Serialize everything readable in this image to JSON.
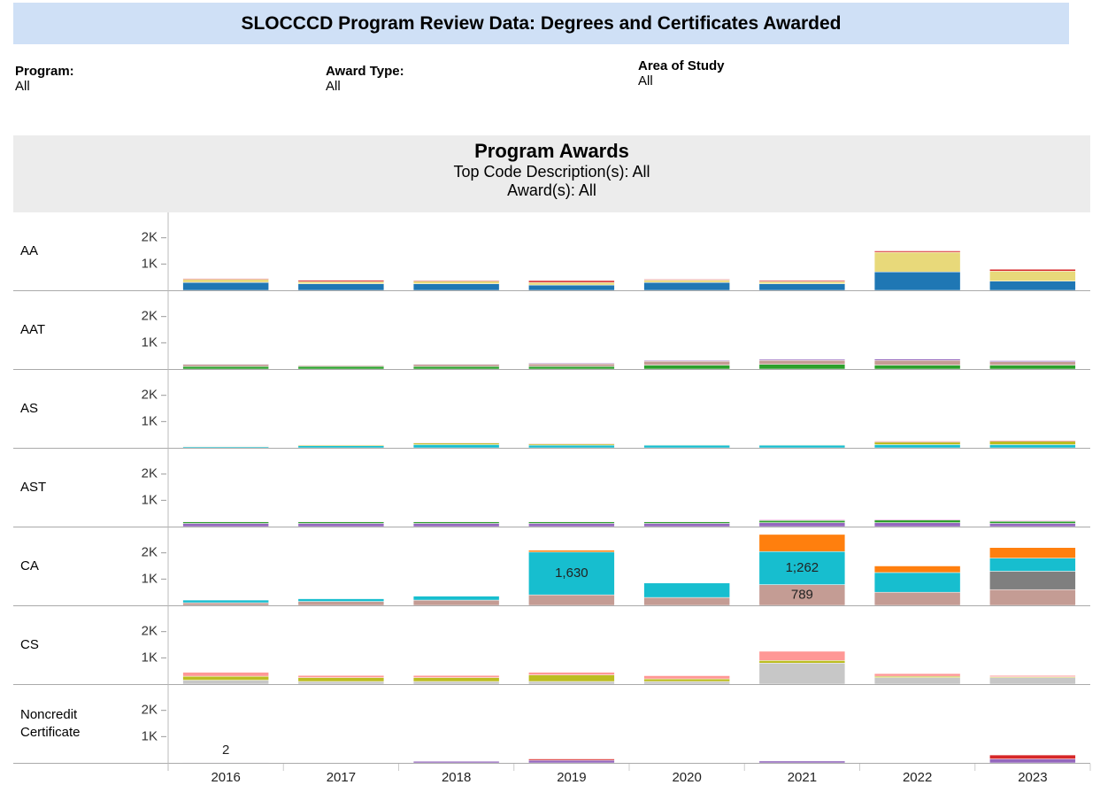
{
  "title": "SLOCCCD Program Review Data: Degrees and Certificates Awarded",
  "filters": [
    {
      "label": "Program:",
      "value": "All"
    },
    {
      "label": "Award Type:",
      "value": "All"
    },
    {
      "label": "Area of Study",
      "value": "All"
    }
  ],
  "chart_data": {
    "type": "stacked-bar-panels",
    "title": "Program Awards",
    "subtitle": [
      "Top Code Description(s): All",
      "Award(s): All"
    ],
    "categories": [
      "2016",
      "2017",
      "2018",
      "2019",
      "2020",
      "2021",
      "2022",
      "2023"
    ],
    "ylim": [
      0,
      2900
    ],
    "yticks": [
      {
        "value": 1000,
        "label": "1K"
      },
      {
        "value": 2000,
        "label": "2K"
      }
    ],
    "panels": [
      {
        "name": "AA",
        "series": [
          {
            "color": "#1f77b4",
            "values": [
              300,
              250,
              250,
              200,
              300,
              250,
              700,
              350
            ]
          },
          {
            "color": "#e8d97a",
            "values": [
              120,
              80,
              100,
              100,
              90,
              80,
              750,
              380
            ]
          },
          {
            "color": "#d62728",
            "values": [
              30,
              50,
              30,
              70,
              30,
              40,
              50,
              70
            ]
          }
        ]
      },
      {
        "name": "AAT",
        "series": [
          {
            "color": "#2ca02c",
            "values": [
              100,
              100,
              100,
              100,
              150,
              180,
              150,
              150
            ]
          },
          {
            "color": "#c49c94",
            "values": [
              80,
              40,
              80,
              100,
              150,
              150,
              180,
              130
            ]
          },
          {
            "color": "#9467bd",
            "values": [
              20,
              10,
              20,
              30,
              30,
              40,
              50,
              40
            ]
          }
        ]
      },
      {
        "name": "AS",
        "series": [
          {
            "color": "#17becf",
            "values": [
              40,
              80,
              120,
              100,
              100,
              100,
              120,
              120
            ]
          },
          {
            "color": "#bcbd22",
            "values": [
              20,
              30,
              60,
              50,
              20,
              20,
              100,
              130
            ]
          },
          {
            "color": "#d62728",
            "values": [
              10,
              10,
              20,
              20,
              10,
              10,
              30,
              30
            ]
          }
        ]
      },
      {
        "name": "AST",
        "series": [
          {
            "color": "#9467bd",
            "values": [
              120,
              120,
              120,
              120,
              120,
              150,
              150,
              120
            ]
          },
          {
            "color": "#2ca02c",
            "values": [
              60,
              60,
              60,
              60,
              60,
              80,
              100,
              80
            ]
          },
          {
            "color": "#e377c2",
            "values": [
              20,
              20,
              20,
              20,
              20,
              30,
              30,
              30
            ]
          }
        ]
      },
      {
        "name": "CA",
        "series": [
          {
            "color": "#c49c94",
            "values": [
              100,
              150,
              200,
              400,
              300,
              789,
              500,
              600
            ],
            "value_labels": [
              null,
              null,
              null,
              null,
              null,
              "789",
              null,
              null
            ]
          },
          {
            "color": "#7f7f7f",
            "values": [
              0,
              0,
              0,
              0,
              0,
              0,
              0,
              700
            ]
          },
          {
            "color": "#17becf",
            "values": [
              100,
              100,
              150,
              1630,
              550,
              1262,
              750,
              500
            ],
            "value_labels": [
              null,
              null,
              null,
              "1,630",
              null,
              "1;262",
              null,
              null
            ]
          },
          {
            "color": "#ff7f0e",
            "values": [
              0,
              0,
              0,
              70,
              0,
              650,
              250,
              400
            ]
          }
        ]
      },
      {
        "name": "CS",
        "series": [
          {
            "color": "#c7c7c7",
            "values": [
              150,
              100,
              100,
              100,
              100,
              800,
              250,
              250
            ]
          },
          {
            "color": "#bcbd22",
            "values": [
              150,
              150,
              150,
              250,
              100,
              100,
              50,
              30
            ]
          },
          {
            "color": "#ff9896",
            "values": [
              150,
              80,
              80,
              100,
              120,
              350,
              100,
              50
            ]
          }
        ]
      },
      {
        "name": "Noncredit Certificate",
        "series": [
          {
            "color": "#9467bd",
            "values": [
              2,
              10,
              60,
              100,
              10,
              70,
              0,
              150
            ],
            "value_labels": [
              "2",
              null,
              null,
              null,
              null,
              null,
              null,
              null
            ]
          },
          {
            "color": "#d62728",
            "values": [
              0,
              0,
              0,
              50,
              0,
              0,
              0,
              150
            ]
          }
        ]
      }
    ]
  }
}
